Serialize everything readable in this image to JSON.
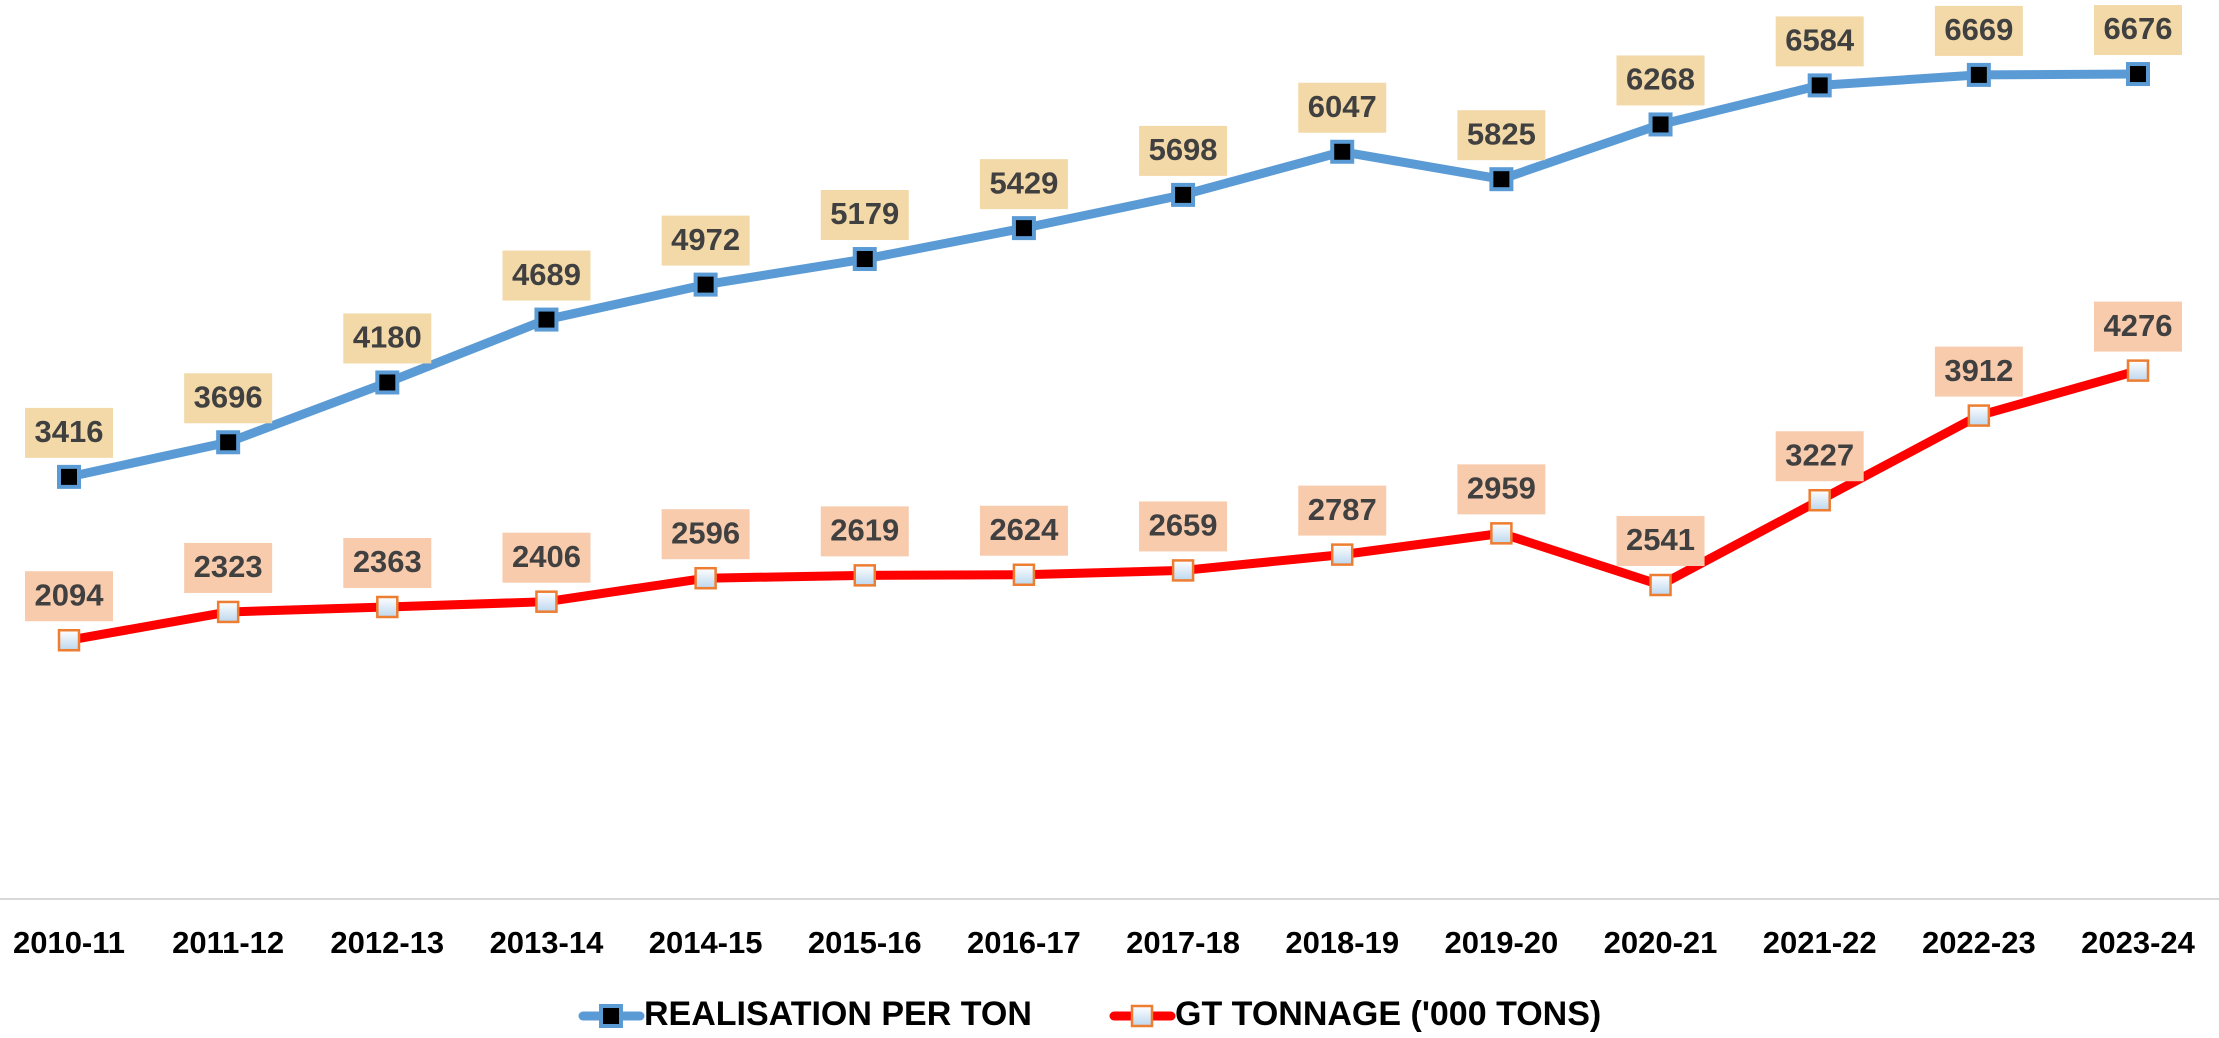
{
  "chart_data": {
    "type": "line",
    "categories": [
      "2010-11",
      "2011-12",
      "2012-13",
      "2013-14",
      "2014-15",
      "2015-16",
      "2016-17",
      "2017-18",
      "2018-19",
      "2019-20",
      "2020-21",
      "2021-22",
      "2022-23",
      "2023-24"
    ],
    "series": [
      {
        "name": "REALISATION PER TON",
        "color": "#5b9bd5",
        "values": [
          3416,
          3696,
          4180,
          4689,
          4972,
          5179,
          5429,
          5698,
          6047,
          5825,
          6268,
          6584,
          6669,
          6676
        ]
      },
      {
        "name": "GT TONNAGE ('000 TONS)",
        "color": "#ff0000",
        "values": [
          2094,
          2323,
          2363,
          2406,
          2596,
          2619,
          2624,
          2659,
          2787,
          2959,
          2541,
          3227,
          3912,
          4276
        ]
      }
    ],
    "ylim": [
      0,
      7000
    ]
  }
}
